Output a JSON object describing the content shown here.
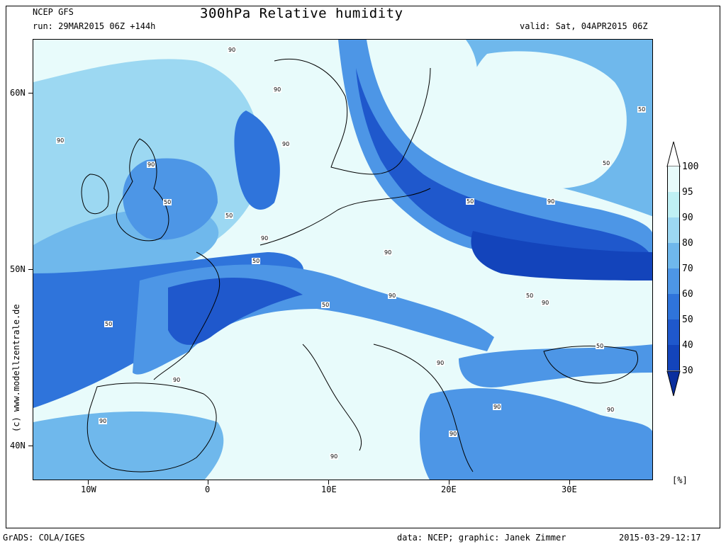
{
  "header": {
    "model": "NCEP GFS",
    "run": "run: 29MAR2015 06Z +144h",
    "title": "300hPa Relative humidity",
    "valid": "valid: Sat, 04APR2015 06Z"
  },
  "axes": {
    "lat_labels": [
      "60N",
      "50N",
      "40N"
    ],
    "lon_labels": [
      "10W",
      "0",
      "10E",
      "20E",
      "30E"
    ]
  },
  "colorbar": {
    "labels": [
      "100",
      "95",
      "90",
      "80",
      "70",
      "60",
      "50",
      "40",
      "30"
    ],
    "unit": "[%]",
    "colors": [
      "#ffffff",
      "#e8fbfb",
      "#bff0f4",
      "#9cd8f2",
      "#6fb8ec",
      "#4d96e6",
      "#2f74db",
      "#1f58cc",
      "#1344bb",
      "#0a2f9e"
    ]
  },
  "contour_labels": [
    {
      "text": "90"
    },
    {
      "text": "90"
    },
    {
      "text": "90"
    },
    {
      "text": "90"
    },
    {
      "text": "90"
    },
    {
      "text": "50"
    },
    {
      "text": "50"
    },
    {
      "text": "90"
    },
    {
      "text": "50"
    },
    {
      "text": "50"
    },
    {
      "text": "50"
    },
    {
      "text": "90"
    },
    {
      "text": "50"
    },
    {
      "text": "90"
    },
    {
      "text": "90"
    },
    {
      "text": "50"
    },
    {
      "text": "90"
    },
    {
      "text": "50"
    },
    {
      "text": "90"
    },
    {
      "text": "90"
    },
    {
      "text": "90"
    },
    {
      "text": "90"
    },
    {
      "text": "90"
    },
    {
      "text": "50"
    },
    {
      "text": "90"
    },
    {
      "text": "90"
    },
    {
      "text": "50"
    }
  ],
  "footer": {
    "grads": "GrADS: COLA/IGES",
    "credit": "data: NCEP; graphic: Janek Zimmer",
    "timestamp": "2015-03-29-12:17",
    "website": "(c) www.modellzentrale.de"
  }
}
